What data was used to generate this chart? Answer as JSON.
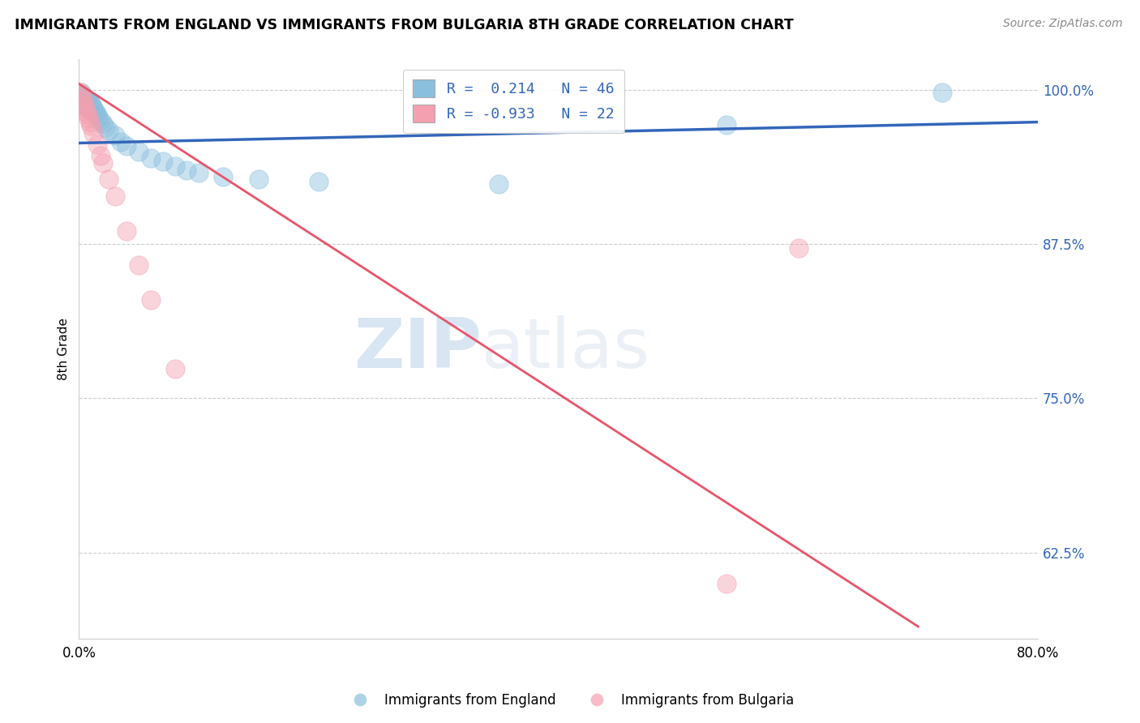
{
  "title": "IMMIGRANTS FROM ENGLAND VS IMMIGRANTS FROM BULGARIA 8TH GRADE CORRELATION CHART",
  "source": "Source: ZipAtlas.com",
  "ylabel": "8th Grade",
  "watermark_zip": "ZIP",
  "watermark_atlas": "atlas",
  "x_min": 0.0,
  "x_max": 0.8,
  "y_min": 0.555,
  "y_max": 1.025,
  "y_ticks": [
    0.625,
    0.75,
    0.875,
    1.0
  ],
  "y_tick_labels": [
    "62.5%",
    "75.0%",
    "87.5%",
    "100.0%"
  ],
  "legend_england_label": "Immigrants from England",
  "legend_bulgaria_label": "Immigrants from Bulgaria",
  "legend_R_england": "R =  0.214",
  "legend_N_england": "N = 46",
  "legend_R_bulgaria": "R = -0.933",
  "legend_N_bulgaria": "N = 22",
  "color_england": "#8bbfde",
  "color_bulgaria": "#f4a0b0",
  "trendline_color_england": "#3366bb",
  "trendline_color_bulgaria": "#e8546a",
  "england_x": [
    0.001,
    0.002,
    0.002,
    0.003,
    0.003,
    0.004,
    0.004,
    0.005,
    0.005,
    0.006,
    0.006,
    0.006,
    0.007,
    0.007,
    0.007,
    0.008,
    0.008,
    0.009,
    0.009,
    0.01,
    0.01,
    0.011,
    0.012,
    0.013,
    0.014,
    0.015,
    0.016,
    0.018,
    0.02,
    0.022,
    0.025,
    0.03,
    0.035,
    0.04,
    0.05,
    0.06,
    0.07,
    0.08,
    0.09,
    0.1,
    0.12,
    0.15,
    0.2,
    0.35,
    0.54,
    0.72
  ],
  "england_y": [
    0.995,
    0.998,
    0.993,
    0.996,
    0.991,
    0.994,
    0.989,
    0.993,
    0.988,
    0.993,
    0.99,
    0.987,
    0.992,
    0.988,
    0.985,
    0.991,
    0.987,
    0.99,
    0.985,
    0.989,
    0.983,
    0.987,
    0.985,
    0.983,
    0.981,
    0.98,
    0.978,
    0.975,
    0.973,
    0.97,
    0.967,
    0.963,
    0.958,
    0.955,
    0.95,
    0.945,
    0.942,
    0.938,
    0.935,
    0.933,
    0.93,
    0.928,
    0.926,
    0.924,
    0.972,
    0.998
  ],
  "bulgaria_x": [
    0.001,
    0.002,
    0.003,
    0.004,
    0.005,
    0.006,
    0.007,
    0.008,
    0.009,
    0.01,
    0.012,
    0.015,
    0.018,
    0.02,
    0.025,
    0.03,
    0.04,
    0.05,
    0.06,
    0.08,
    0.54,
    0.6
  ],
  "bulgaria_y": [
    0.998,
    0.995,
    0.992,
    0.989,
    0.986,
    0.983,
    0.98,
    0.977,
    0.974,
    0.971,
    0.965,
    0.956,
    0.947,
    0.941,
    0.928,
    0.914,
    0.886,
    0.858,
    0.83,
    0.774,
    0.6,
    0.872
  ],
  "trendline_england_x0": 0.0,
  "trendline_england_y0": 0.957,
  "trendline_england_x1": 0.8,
  "trendline_england_y1": 0.974,
  "trendline_bulgaria_x0": 0.0,
  "trendline_bulgaria_y0": 1.005,
  "trendline_bulgaria_x1": 0.7,
  "trendline_bulgaria_y1": 0.565
}
